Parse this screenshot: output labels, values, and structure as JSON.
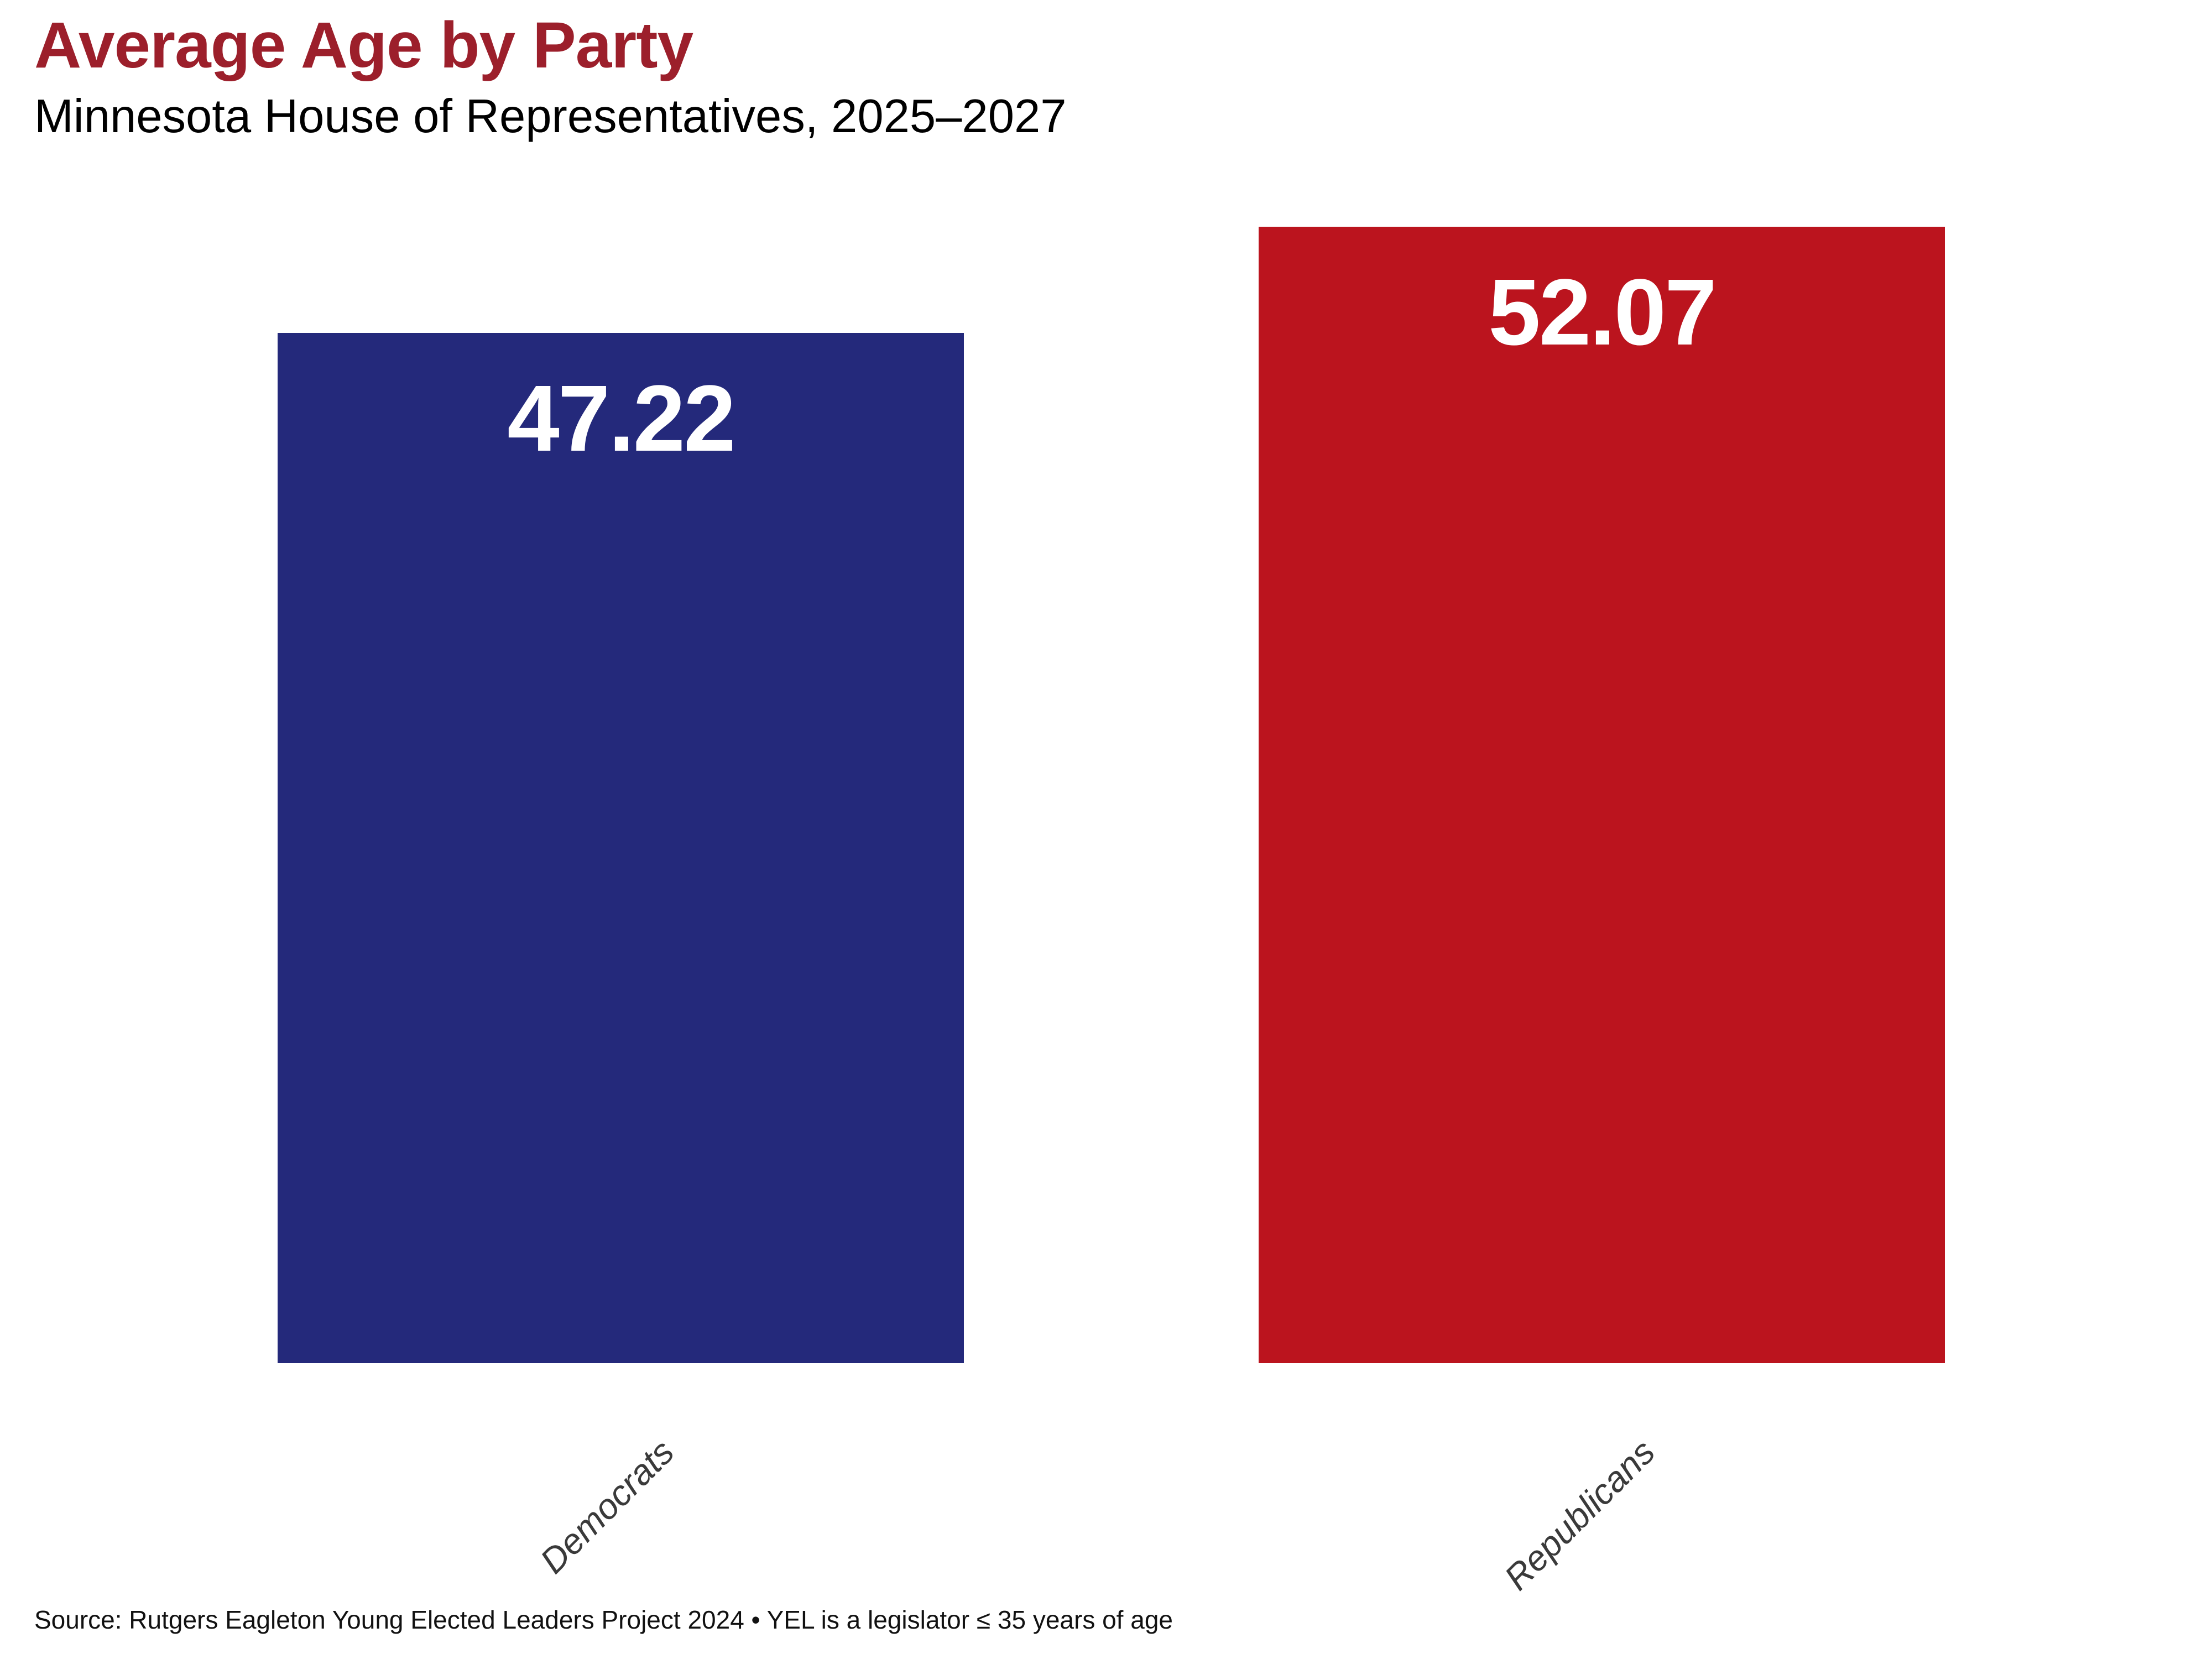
{
  "header": {
    "title": "Average Age by Party",
    "subtitle": "Minnesota House of Representatives, 2025–2027"
  },
  "footer": {
    "source": "Source: Rutgers Eagleton Young Elected Leaders Project 2024 • YEL is a legislator ≤ 35 years of age"
  },
  "chart_data": {
    "type": "bar",
    "title": "Average Age by Party",
    "subtitle": "Minnesota House of Representatives, 2025–2027",
    "categories": [
      "Democrats",
      "Republicans"
    ],
    "values": [
      47.22,
      52.07
    ],
    "value_labels": [
      "47.22",
      "52.07"
    ],
    "bar_colors": [
      "#24297b",
      "#bb141e"
    ],
    "value_label_color": "#ffffff",
    "title_color": "#9c1f2b",
    "tick_label_color": "#3a3a3a",
    "xlabel": "",
    "ylabel": "",
    "ylim": [
      0,
      52.07
    ],
    "grid": false,
    "legend": false,
    "axis_lines": false,
    "source": "Source: Rutgers Eagleton Young Elected Leaders Project 2024 • YEL is a legislator ≤ 35 years of age"
  }
}
